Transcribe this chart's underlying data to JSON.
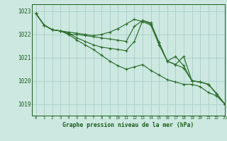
{
  "background_color": "#cce8e0",
  "grid_color": "#aacfc8",
  "line_color": "#2d6e2d",
  "text_color": "#1a5c1a",
  "xlabel": "Graphe pression niveau de la mer (hPa)",
  "ylim": [
    1018.5,
    1023.3
  ],
  "xlim": [
    -0.5,
    23
  ],
  "yticks": [
    1019,
    1020,
    1021,
    1022,
    1023
  ],
  "xticks": [
    0,
    1,
    2,
    3,
    4,
    5,
    6,
    7,
    8,
    9,
    10,
    11,
    12,
    13,
    14,
    15,
    16,
    17,
    18,
    19,
    20,
    21,
    22,
    23
  ],
  "series": [
    [
      1022.9,
      1022.4,
      1022.2,
      1022.15,
      1022.0,
      1022.0,
      1021.95,
      1021.9,
      1021.85,
      1021.8,
      1021.75,
      1021.7,
      1022.35,
      1022.6,
      1022.45,
      1021.65,
      1020.85,
      1021.05,
      1020.65,
      1020.0,
      1019.95,
      1019.85,
      1019.45,
      1019.0
    ],
    [
      1022.9,
      1022.4,
      1022.2,
      1022.15,
      1022.1,
      1022.05,
      1022.0,
      1021.95,
      1022.0,
      1022.1,
      1022.25,
      1022.45,
      1022.65,
      1022.55,
      1022.4,
      1021.55,
      1020.85,
      1020.7,
      1021.05,
      1020.0,
      1019.95,
      1019.85,
      1019.45,
      1019.0
    ],
    [
      1022.9,
      1022.4,
      1022.2,
      1022.15,
      1022.05,
      1021.85,
      1021.7,
      1021.55,
      1021.45,
      1021.4,
      1021.35,
      1021.3,
      1021.7,
      1022.6,
      1022.5,
      1021.65,
      1020.85,
      1020.7,
      1020.55,
      1020.0,
      1019.95,
      1019.85,
      1019.45,
      1019.0
    ],
    [
      1022.9,
      1022.4,
      1022.2,
      1022.15,
      1022.0,
      1021.75,
      1021.55,
      1021.35,
      1021.1,
      1020.85,
      1020.65,
      1020.5,
      1020.6,
      1020.7,
      1020.45,
      1020.25,
      1020.05,
      1019.95,
      1019.85,
      1019.85,
      1019.75,
      1019.5,
      1019.35,
      1019.0
    ]
  ]
}
